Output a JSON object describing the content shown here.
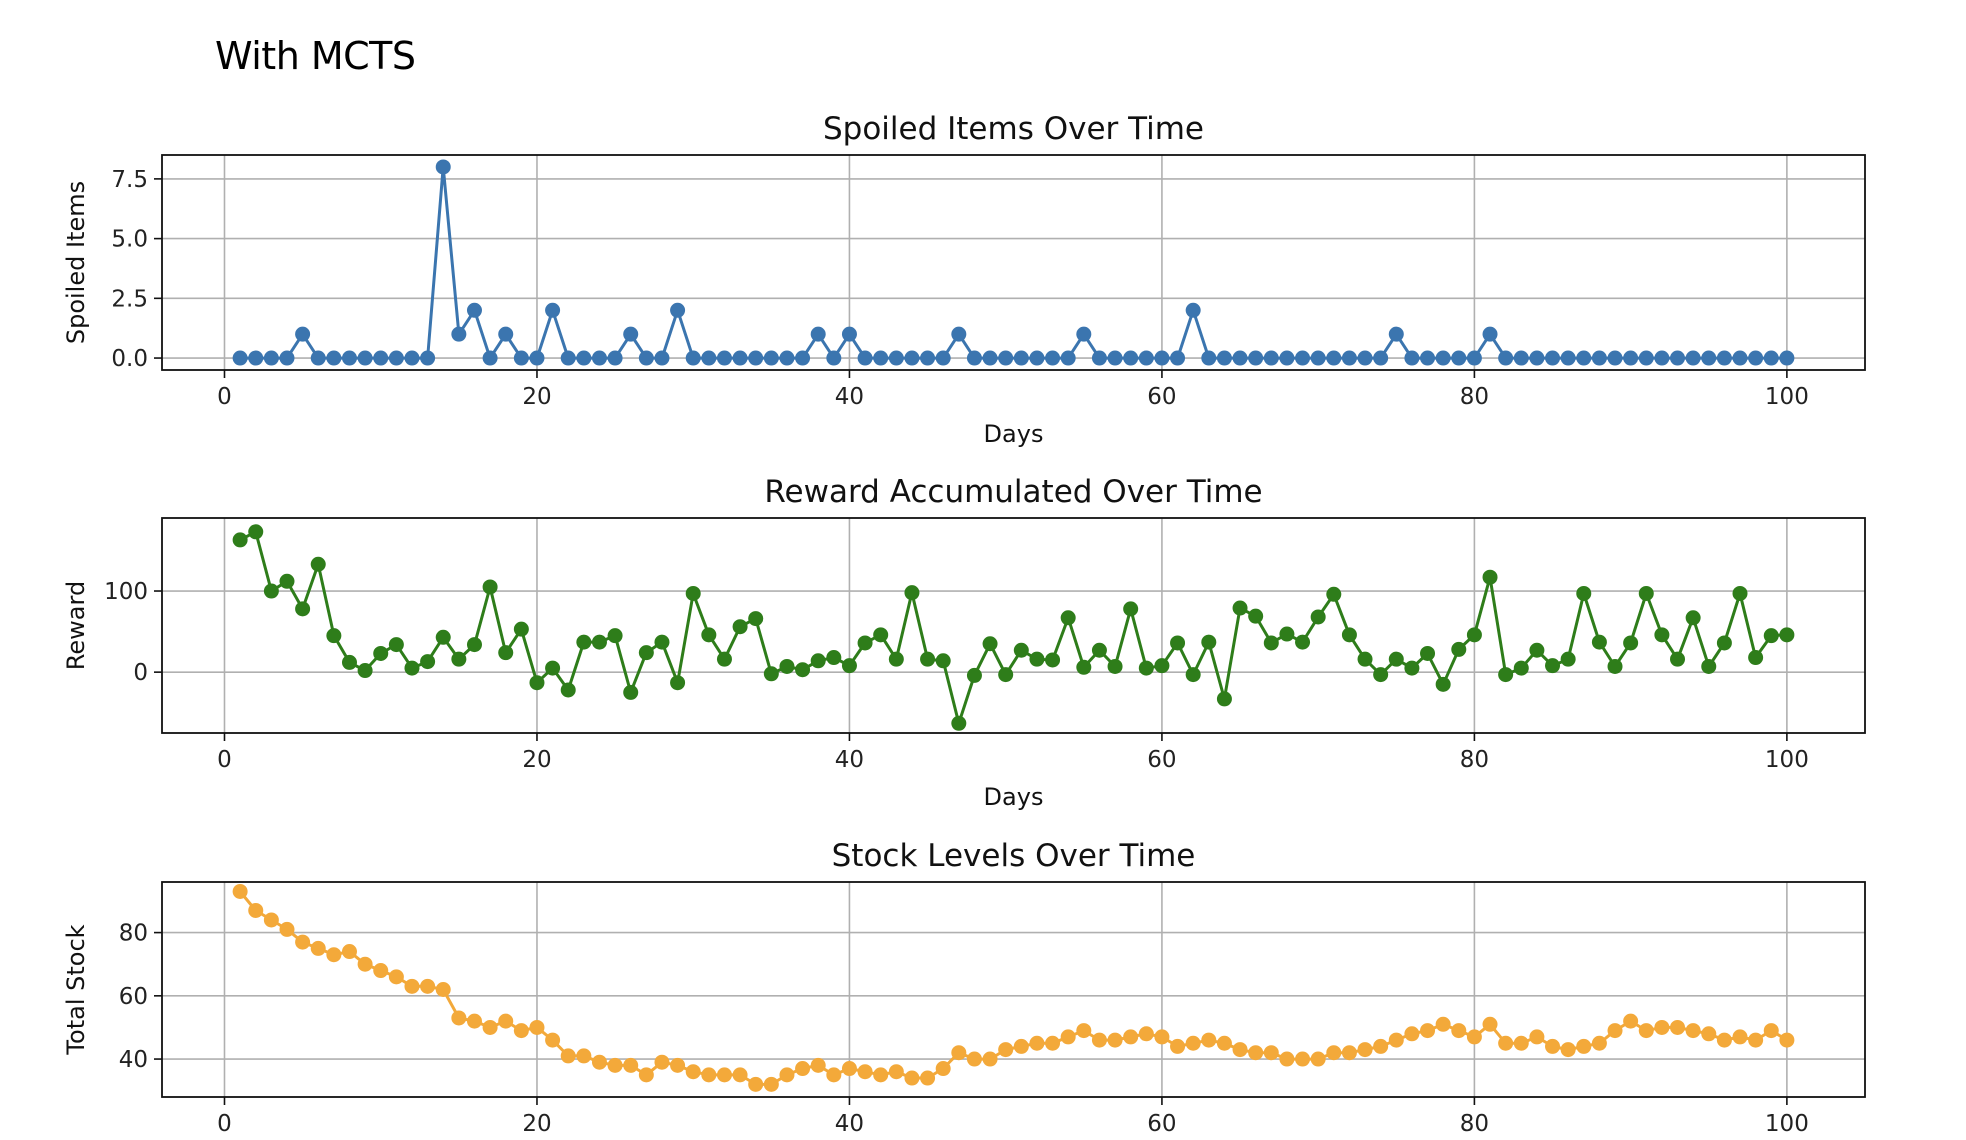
{
  "page_title": "With MCTS",
  "chart_data": [
    {
      "type": "line",
      "title": "Spoiled Items Over Time",
      "xlabel": "Days",
      "ylabel": "Spoiled Items",
      "xlim": [
        -4,
        105
      ],
      "ylim": [
        -0.5,
        8.5
      ],
      "xticks": [
        0,
        20,
        40,
        60,
        80,
        100
      ],
      "yticks": [
        0.0,
        2.5,
        5.0,
        7.5
      ],
      "ytick_labels": [
        "0.0",
        "2.5",
        "5.0",
        "7.5"
      ],
      "grid": true,
      "color": "#3b75af",
      "marker": "circle",
      "x_start": 1,
      "values": [
        0,
        0,
        0,
        0,
        1,
        0,
        0,
        0,
        0,
        0,
        0,
        0,
        0,
        8,
        1,
        2,
        0,
        1,
        0,
        0,
        2,
        0,
        0,
        0,
        0,
        1,
        0,
        0,
        2,
        0,
        0,
        0,
        0,
        0,
        0,
        0,
        0,
        1,
        0,
        1,
        0,
        0,
        0,
        0,
        0,
        0,
        1,
        0,
        0,
        0,
        0,
        0,
        0,
        0,
        1,
        0,
        0,
        0,
        0,
        0,
        0,
        2,
        0,
        0,
        0,
        0,
        0,
        0,
        0,
        0,
        0,
        0,
        0,
        0,
        1,
        0,
        0,
        0,
        0,
        0,
        1,
        0,
        0,
        0,
        0,
        0,
        0,
        0,
        0,
        0,
        0,
        0,
        0,
        0,
        0,
        0,
        0,
        0,
        0,
        0
      ]
    },
    {
      "type": "line",
      "title": "Reward Accumulated Over Time",
      "xlabel": "Days",
      "ylabel": "Reward",
      "xlim": [
        -4,
        105
      ],
      "ylim": [
        -75,
        190
      ],
      "xticks": [
        0,
        20,
        40,
        60,
        80,
        100
      ],
      "yticks": [
        0,
        100
      ],
      "ytick_labels": [
        "0",
        "100"
      ],
      "grid": true,
      "color": "#2e7d1a",
      "marker": "circle",
      "x_start": 1,
      "values": [
        163,
        173,
        100,
        112,
        78,
        133,
        45,
        12,
        2,
        23,
        34,
        5,
        13,
        43,
        16,
        34,
        105,
        24,
        53,
        -13,
        5,
        -22,
        37,
        37,
        45,
        -25,
        24,
        37,
        -13,
        97,
        46,
        16,
        56,
        66,
        -2,
        7,
        3,
        14,
        18,
        8,
        36,
        46,
        16,
        98,
        16,
        14,
        -63,
        -4,
        35,
        -3,
        27,
        16,
        15,
        67,
        6,
        27,
        7,
        78,
        5,
        8,
        36,
        -3,
        37,
        -33,
        79,
        69,
        36,
        47,
        37,
        68,
        96,
        46,
        16,
        -3,
        16,
        5,
        23,
        -15,
        28,
        46,
        117,
        -3,
        5,
        27,
        8,
        16,
        97,
        37,
        7,
        36,
        97,
        46,
        16,
        67,
        7,
        36,
        97,
        18,
        45,
        46
      ]
    },
    {
      "type": "line",
      "title": "Stock Levels Over Time",
      "xlabel": "",
      "ylabel": "Total Stock",
      "xlim": [
        -4,
        105
      ],
      "ylim": [
        28,
        96
      ],
      "xticks": [
        0,
        20,
        40,
        60,
        80,
        100
      ],
      "yticks": [
        40,
        60,
        80
      ],
      "ytick_labels": [
        "40",
        "60",
        "80"
      ],
      "grid": true,
      "color": "#f3a93a",
      "marker": "circle",
      "x_start": 1,
      "values": [
        93,
        87,
        84,
        81,
        77,
        75,
        73,
        74,
        70,
        68,
        66,
        63,
        63,
        62,
        53,
        52,
        50,
        52,
        49,
        50,
        46,
        41,
        41,
        39,
        38,
        38,
        35,
        39,
        38,
        36,
        35,
        35,
        35,
        32,
        32,
        35,
        37,
        38,
        35,
        37,
        36,
        35,
        36,
        34,
        34,
        37,
        42,
        40,
        40,
        43,
        44,
        45,
        45,
        47,
        49,
        46,
        46,
        47,
        48,
        47,
        44,
        45,
        46,
        45,
        43,
        42,
        42,
        40,
        40,
        40,
        42,
        42,
        43,
        44,
        46,
        48,
        49,
        51,
        49,
        47,
        51,
        45,
        45,
        47,
        44,
        43,
        44,
        45,
        49,
        52,
        49,
        50,
        50,
        49,
        48,
        46,
        47,
        46,
        49,
        46
      ]
    }
  ]
}
